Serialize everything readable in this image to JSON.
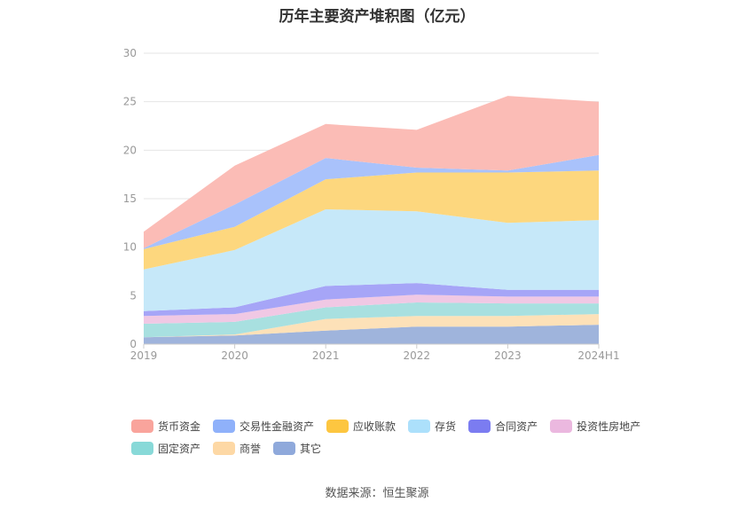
{
  "title": "历年主要资产堆积图（亿元）",
  "source": "数据来源：恒生聚源",
  "chart_data": {
    "type": "area",
    "stacked": true,
    "categories": [
      "2019",
      "2020",
      "2021",
      "2022",
      "2023",
      "2024H1"
    ],
    "ylim": [
      0,
      30
    ],
    "yticks": [
      "0",
      "5",
      "10",
      "15",
      "20",
      "25",
      "30"
    ],
    "grid": true,
    "legend_position": "bottom",
    "series": [
      {
        "name": "其它",
        "color": "#9fb4dc",
        "values": [
          0.7,
          0.9,
          1.4,
          1.8,
          1.8,
          2.0
        ]
      },
      {
        "name": "商誉",
        "color": "#fde1b8",
        "values": [
          0.0,
          0.1,
          1.2,
          1.1,
          1.1,
          1.1
        ]
      },
      {
        "name": "固定资产",
        "color": "#a8e0e0",
        "values": [
          1.4,
          1.3,
          1.2,
          1.4,
          1.3,
          1.1
        ]
      },
      {
        "name": "投资性房地产",
        "color": "#f0c8e4",
        "values": [
          0.8,
          0.8,
          0.8,
          0.8,
          0.7,
          0.7
        ]
      },
      {
        "name": "合同资产",
        "color": "#a6a5f7",
        "values": [
          0.5,
          0.7,
          1.4,
          1.2,
          0.7,
          0.7
        ]
      },
      {
        "name": "存货",
        "color": "#c6e8f9",
        "values": [
          4.3,
          5.9,
          7.9,
          7.4,
          6.9,
          7.2
        ]
      },
      {
        "name": "应收账款",
        "color": "#fdd77e",
        "values": [
          2.1,
          2.4,
          3.1,
          4.0,
          5.2,
          5.1
        ]
      },
      {
        "name": "交易性金融资产",
        "color": "#a9c2fb",
        "values": [
          0.1,
          2.3,
          2.2,
          0.5,
          0.2,
          1.6
        ]
      },
      {
        "name": "货币资金",
        "color": "#fbbcb6",
        "values": [
          1.7,
          4.0,
          3.5,
          3.9,
          7.7,
          5.5
        ]
      }
    ],
    "legend": [
      {
        "name": "货币资金",
        "color": "#f9a49c"
      },
      {
        "name": "交易性金融资产",
        "color": "#8fb1fa"
      },
      {
        "name": "应收账款",
        "color": "#fdc640"
      },
      {
        "name": "存货",
        "color": "#ace0fb"
      },
      {
        "name": "合同资产",
        "color": "#7b7cf1"
      },
      {
        "name": "投资性房地产",
        "color": "#ebb8df"
      },
      {
        "name": "固定资产",
        "color": "#88d9d8"
      },
      {
        "name": "商誉",
        "color": "#fdd8a5"
      },
      {
        "name": "其它",
        "color": "#8fa9db"
      }
    ]
  }
}
